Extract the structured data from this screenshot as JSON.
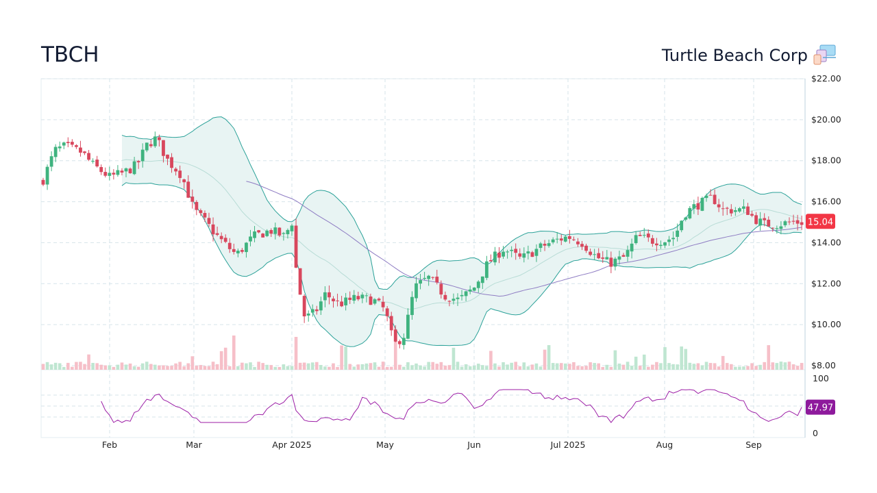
{
  "header": {
    "ticker": "TBCH",
    "company": "Turtle Beach Corp"
  },
  "colors": {
    "up": "#3fb37f",
    "down": "#d8475d",
    "band_fill": "#e8f4f3",
    "band_line": "#2aa198",
    "sma_line": "#8e7cc3",
    "rsi_line": "#9c1ea6",
    "last_price_badge": "#f23645",
    "rsi_badge": "#8e1a9c"
  },
  "chart_data": [
    {
      "type": "candlestick",
      "y_ticks": [
        "$8.00",
        "$10.00",
        "$12.00",
        "$14.00",
        "$16.00",
        "$18.00",
        "$20.00",
        "$22.00"
      ],
      "ylim": [
        8,
        22
      ],
      "x_labels": [
        "Feb",
        "Mar",
        "Apr 2025",
        "May",
        "Jun",
        "Jul 2025",
        "Aug",
        "Sep"
      ],
      "last_price": "15.04",
      "overlays": [
        "bollinger_bands",
        "moving_average",
        "volume"
      ],
      "grid": true
    },
    {
      "type": "line",
      "indicator": "RSI",
      "y_ticks": [
        "100",
        "0"
      ],
      "ylim": [
        0,
        100
      ],
      "last_value": "47.97",
      "grid": true
    }
  ]
}
